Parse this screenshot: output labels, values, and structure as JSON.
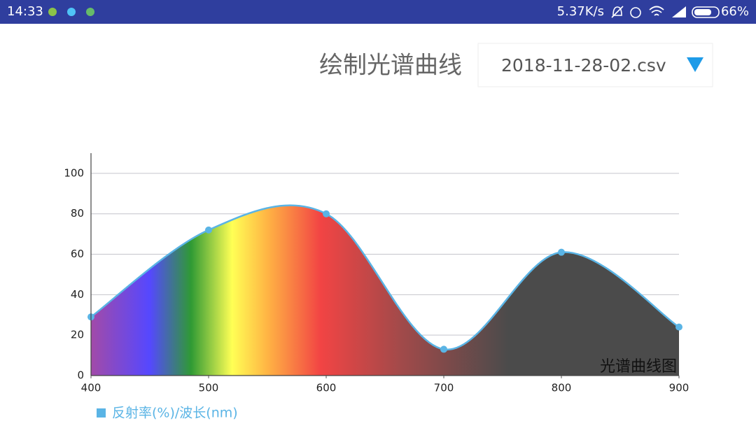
{
  "status_bar": {
    "time": "14:33",
    "speed": "5.37K/s",
    "battery": "66%"
  },
  "header": {
    "title": "绘制光谱曲线",
    "file": "2018-11-28-02.csv"
  },
  "chart_data": {
    "type": "area",
    "x": [
      400,
      500,
      600,
      700,
      800,
      900
    ],
    "series": [
      {
        "name": "反射率(%)/波长(nm)",
        "color": "#5ab4e5",
        "values": [
          29,
          72,
          80,
          13,
          61,
          24
        ]
      }
    ],
    "xlim": [
      400,
      900
    ],
    "xticks": [
      400,
      500,
      600,
      700,
      800,
      900
    ],
    "ylim": [
      0,
      110
    ],
    "yticks": [
      0,
      20,
      40,
      60,
      80,
      100
    ],
    "grid": true,
    "description": "光谱曲线图"
  }
}
